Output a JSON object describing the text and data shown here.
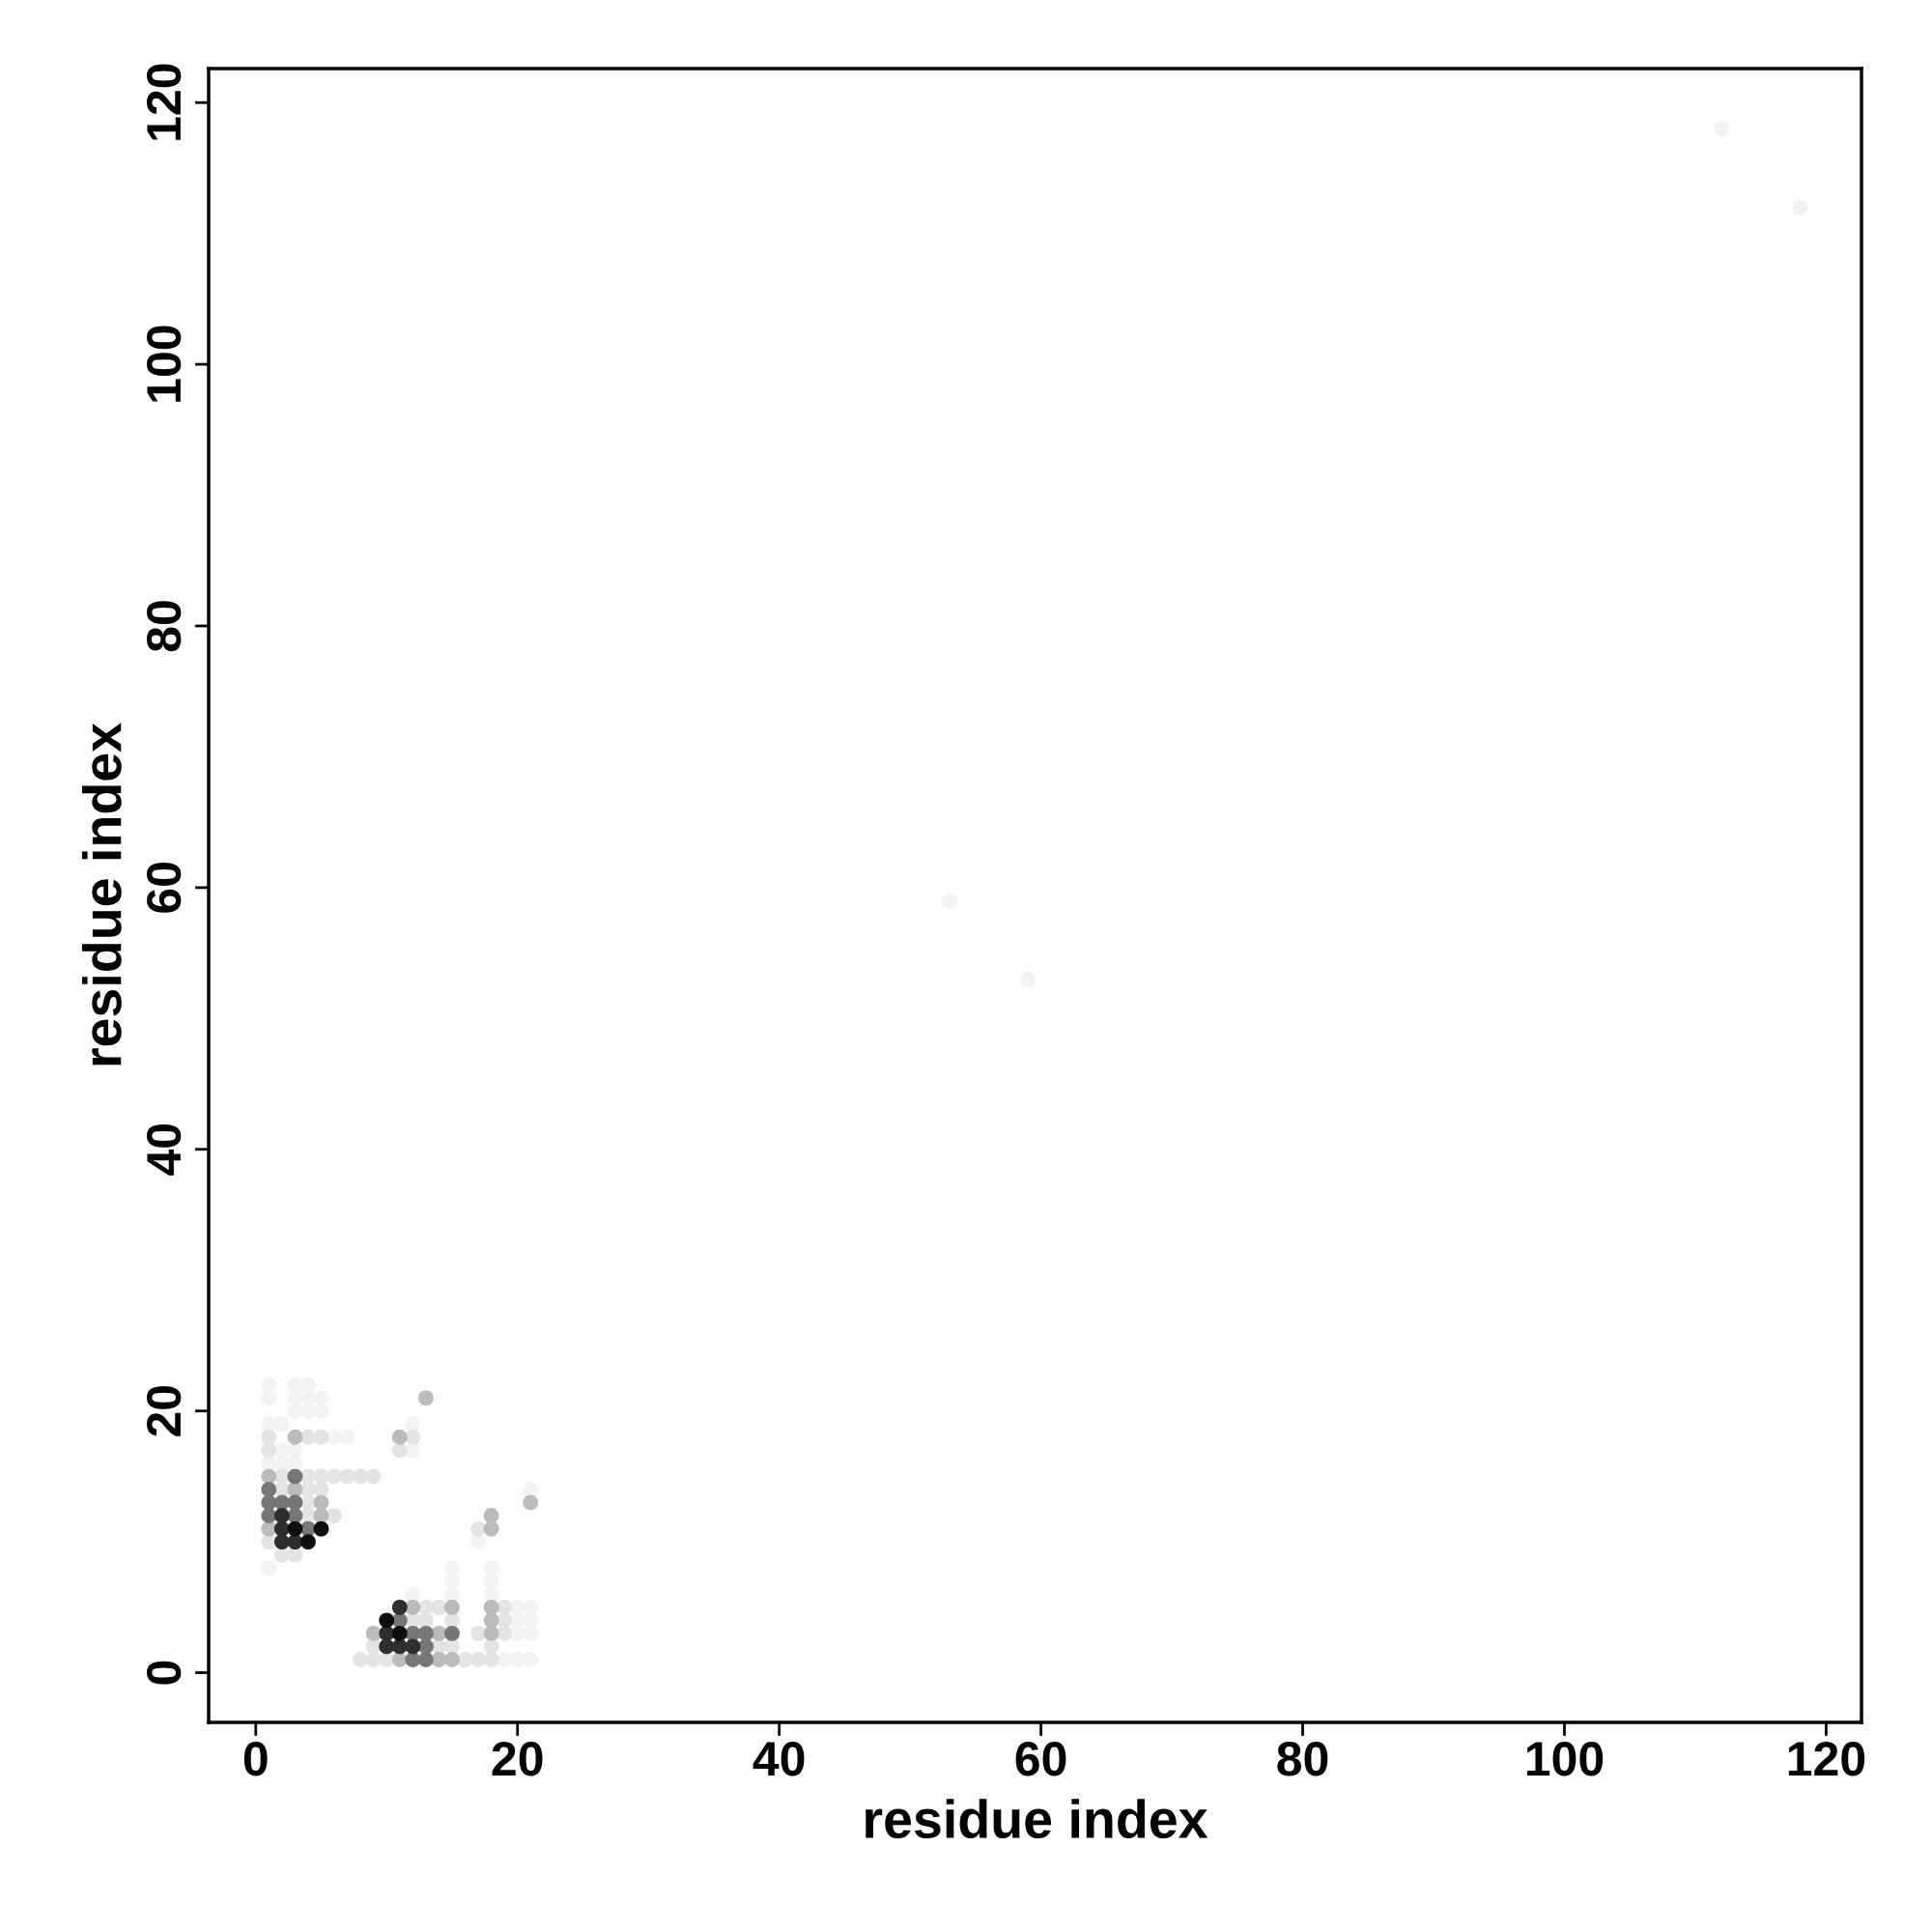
{
  "chart_data": {
    "type": "scatter",
    "xlabel": "residue index",
    "ylabel": "residue index",
    "xlim": [
      -3.6,
      122.7
    ],
    "ylim": [
      -3.8,
      122.6
    ],
    "xticks": [
      0,
      20,
      40,
      60,
      80,
      100,
      120
    ],
    "yticks": [
      0,
      20,
      40,
      60,
      80,
      100,
      120
    ],
    "grid": false,
    "marker": "circle",
    "series": [
      {
        "color": "#f3f3f3",
        "x": [
          1,
          1,
          2,
          3,
          2,
          3,
          6,
          7,
          1,
          2,
          3,
          4,
          5,
          1,
          3,
          4,
          5,
          1,
          3,
          4,
          12,
          15,
          18,
          15,
          18,
          15,
          18,
          17,
          19,
          20,
          21,
          20,
          21,
          20,
          21,
          20,
          21,
          12,
          12,
          21,
          53,
          59,
          112,
          118
        ],
        "values": [
          8,
          16,
          16,
          16,
          17,
          17,
          18,
          18,
          19,
          19,
          20,
          20,
          20,
          21,
          21,
          21,
          21,
          22,
          22,
          22,
          6,
          6,
          6,
          7,
          7,
          8,
          8,
          10,
          1,
          1,
          1,
          3,
          3,
          4,
          4,
          5,
          5,
          17,
          19,
          14,
          59,
          53,
          118,
          112
        ]
      },
      {
        "color": "#e4e4e4",
        "x": [
          2,
          3,
          1,
          4,
          6,
          4,
          2,
          4,
          5,
          2,
          4,
          5,
          1,
          11,
          1,
          4,
          5,
          12,
          13,
          14,
          19,
          12,
          13,
          15,
          19,
          17,
          19,
          9,
          14,
          15,
          18,
          8,
          9,
          10,
          16,
          17,
          18,
          17,
          6,
          7,
          8,
          9
        ],
        "values": [
          9,
          9,
          10,
          12,
          12,
          13,
          14,
          14,
          14,
          15,
          15,
          15,
          17,
          17,
          18,
          18,
          18,
          18,
          5,
          5,
          5,
          4,
          4,
          4,
          4,
          3,
          3,
          2,
          2,
          2,
          2,
          1,
          1,
          1,
          1,
          1,
          1,
          11,
          15,
          15,
          15,
          15
        ]
      },
      {
        "color": "#bbbbbb",
        "x": [
          1,
          5,
          5,
          3,
          1,
          3,
          11,
          13,
          12,
          15,
          18,
          18,
          9,
          14,
          18,
          11,
          14,
          15,
          18,
          18,
          21
        ],
        "values": [
          11,
          12,
          13,
          14,
          15,
          18,
          18,
          21,
          5,
          5,
          5,
          4,
          3,
          3,
          3,
          1,
          1,
          1,
          11,
          12,
          13
        ]
      },
      {
        "color": "#777777",
        "x": [
          1,
          1,
          2,
          3,
          3,
          1,
          3,
          12,
          13,
          15,
          13,
          12,
          13,
          4,
          11
        ],
        "values": [
          12,
          13,
          13,
          13,
          12,
          14,
          15,
          3,
          3,
          3,
          2,
          1,
          1,
          11,
          4
        ]
      },
      {
        "color": "#2e2e2e",
        "x": [
          2,
          3,
          2,
          2,
          11,
          10,
          10,
          11,
          12
        ],
        "values": [
          10,
          10,
          11,
          12,
          5,
          3,
          2,
          2,
          2
        ]
      },
      {
        "color": "#0e0e0e",
        "x": [
          3,
          4,
          5,
          10,
          11
        ],
        "values": [
          11,
          10,
          11,
          4,
          3
        ]
      }
    ]
  }
}
